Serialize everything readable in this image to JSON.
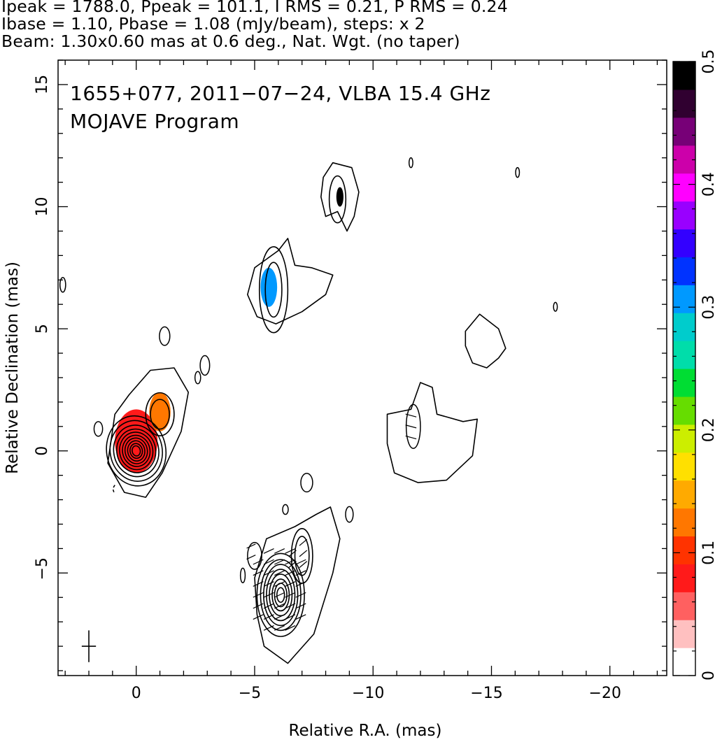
{
  "header": {
    "line1": "Ipeak = 1788.0, Ppeak = 101.1, I RMS = 0.21, P RMS = 0.24",
    "line2": "Ibase = 1.10, Pbase = 1.08 (mJy/beam), steps: x 2",
    "line3": "Beam: 1.30x0.60 mas at 0.6 deg., Nat. Wgt. (no taper)"
  },
  "chart_data": {
    "type": "heatmap",
    "title": "",
    "annotations": [
      "1655+077, 2011−07−24, VLBA 15.4 GHz",
      "MOJAVE Program"
    ],
    "xlabel": "Relative R.A. (mas)",
    "ylabel": "Relative Declination (mas)",
    "xlim": [
      3.3,
      -22.4
    ],
    "ylim": [
      -9.2,
      16.0
    ],
    "x_ticks": [
      0,
      -5,
      -10,
      -15,
      -20
    ],
    "x_tick_labels": [
      "0",
      "−5",
      "−10",
      "−15",
      "−20"
    ],
    "y_ticks": [
      -5,
      0,
      5,
      10,
      15
    ],
    "y_tick_labels": [
      "−5",
      "0",
      "5",
      "10",
      "15"
    ],
    "colorbar": {
      "min": 0,
      "max": 0.5,
      "ticks": [
        0,
        0.1,
        0.2,
        0.3,
        0.4,
        0.5
      ],
      "tick_labels": [
        "0",
        "0.1",
        "0.2",
        "0.3",
        "0.4",
        "0.5"
      ],
      "colors": [
        "#ffffff",
        "#ffc0c0",
        "#ff6060",
        "#ff1a1a",
        "#ff3300",
        "#ff7700",
        "#ffaa00",
        "#ffe000",
        "#ccee00",
        "#66dd00",
        "#00dd33",
        "#00ddaa",
        "#00cccc",
        "#0099ff",
        "#0033ff",
        "#3300ff",
        "#9900ff",
        "#ff00ff",
        "#cc00aa",
        "#770077",
        "#300030",
        "#000000"
      ]
    },
    "beam": {
      "major_mas": 1.3,
      "minor_mas": 0.6,
      "pa_deg": 0.6,
      "center": [
        2.0,
        -8.0
      ]
    },
    "contour_components": [
      {
        "name": "core",
        "x": 0.0,
        "y": 0.0,
        "levels": [
          [
            1.25,
            0.9
          ],
          [
            1.1,
            0.78
          ],
          [
            0.95,
            0.66
          ],
          [
            0.82,
            0.56
          ],
          [
            0.7,
            0.48
          ],
          [
            0.58,
            0.4
          ],
          [
            0.47,
            0.33
          ],
          [
            0.36,
            0.26
          ],
          [
            0.26,
            0.19
          ],
          [
            0.17,
            0.13
          ]
        ],
        "pa_deg": -10
      },
      {
        "name": "inner-jet",
        "x": -1.0,
        "y": 1.5,
        "levels": [
          [
            0.6,
            0.55
          ],
          [
            0.4,
            0.38
          ]
        ],
        "pa_deg": 0
      },
      {
        "name": "knot-a",
        "x": -5.8,
        "y": 6.6,
        "levels": [
          [
            0.6,
            1.1
          ],
          [
            0.35,
            0.7
          ]
        ],
        "pa_deg": 0
      },
      {
        "name": "knot-b",
        "x": -8.5,
        "y": 10.3,
        "levels": [
          [
            0.35,
            0.6
          ]
        ],
        "pa_deg": 0
      },
      {
        "name": "southern",
        "x": -6.1,
        "y": -5.9,
        "levels": [
          [
            1.0,
            1.7
          ],
          [
            0.85,
            1.45
          ],
          [
            0.72,
            1.25
          ],
          [
            0.6,
            1.05
          ],
          [
            0.48,
            0.85
          ],
          [
            0.36,
            0.65
          ],
          [
            0.26,
            0.48
          ],
          [
            0.16,
            0.3
          ]
        ],
        "pa_deg": 0
      },
      {
        "name": "southern-secondary",
        "x": -7.0,
        "y": -4.3,
        "levels": [
          [
            0.45,
            0.7
          ],
          [
            0.3,
            0.5
          ]
        ],
        "pa_deg": 0
      }
    ],
    "pol_regions": [
      {
        "x": 0.0,
        "y": 0.4,
        "rx": 0.9,
        "ry": 1.3,
        "value": 0.07
      },
      {
        "x": -1.0,
        "y": 1.6,
        "rx": 0.45,
        "ry": 0.8,
        "value": 0.11
      },
      {
        "x": -5.6,
        "y": 6.7,
        "rx": 0.35,
        "ry": 0.8,
        "value": 0.3
      },
      {
        "x": -8.6,
        "y": 10.4,
        "rx": 0.15,
        "ry": 0.4,
        "value": 0.5
      }
    ]
  }
}
